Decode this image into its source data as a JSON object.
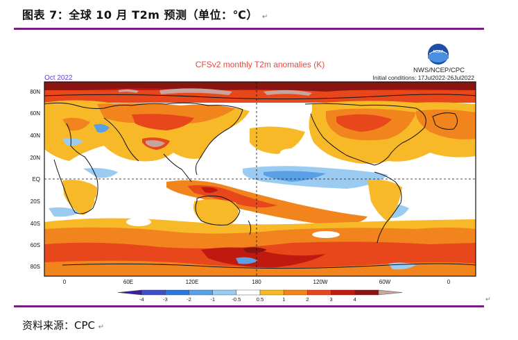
{
  "caption": {
    "title": "图表 7：全球 10 月 T2m 预测（单位：℃）",
    "mark": "↵"
  },
  "map": {
    "title": "CFSv2 monthly T2m anomalies (K)",
    "month": "Oct 2022",
    "initial_conditions": "Initial conditions: 17Jul2022-26Jul2022",
    "agency": "NWS/NCEP/CPC",
    "logo_text": "NOAA",
    "lat_labels": [
      "80N",
      "60N",
      "40N",
      "20N",
      "EQ",
      "20S",
      "40S",
      "60S",
      "80S"
    ],
    "lon_labels": [
      "0",
      "60E",
      "120E",
      "180",
      "120W",
      "60W",
      "0"
    ],
    "end_mark": "↵"
  },
  "legend": {
    "labels": [
      "-4",
      "-3",
      "-2",
      "-1",
      "-0.5",
      "0.5",
      "1",
      "2",
      "3",
      "4"
    ],
    "colors": [
      "#3a1f9e",
      "#3f4fc8",
      "#2a78d8",
      "#5aa0e6",
      "#9ccbf2",
      "#ffffff",
      "#f7b928",
      "#f2841e",
      "#e8471c",
      "#c01a10",
      "#8a1410",
      "#c8a49c"
    ]
  },
  "source": {
    "text": "资料来源：CPC",
    "mark": "↵"
  },
  "colors": {
    "accent_rule": "#7a1f82",
    "title_red": "#e8473c"
  }
}
